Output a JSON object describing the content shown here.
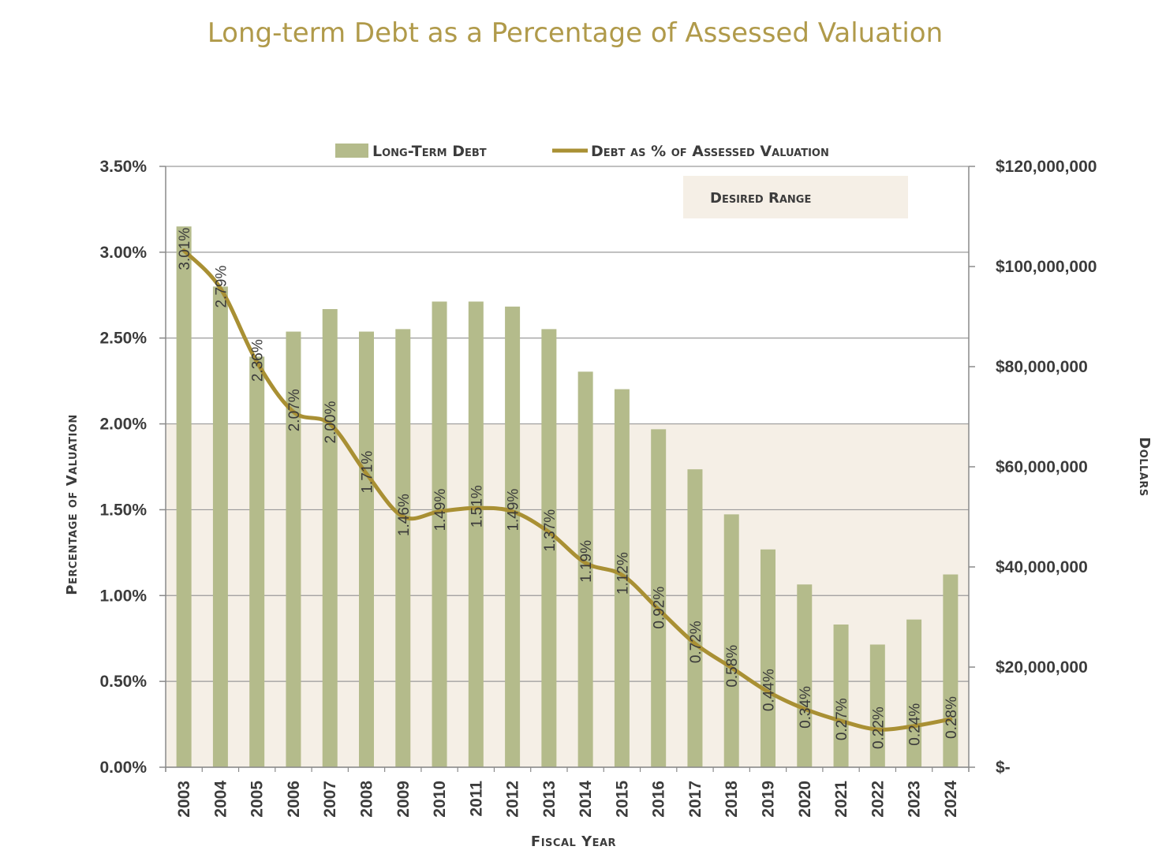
{
  "chart_data": {
    "type": "bar",
    "title": "Long-term Debt as a Percentage of Assessed Valuation",
    "xlabel": "Fiscal Year",
    "ylabel": "Percentage of Valuation",
    "y2label": "Dollars",
    "categories": [
      "2003",
      "2004",
      "2005",
      "2006",
      "2007",
      "2008",
      "2009",
      "2010",
      "2011",
      "2012",
      "2013",
      "2014",
      "2015",
      "2016",
      "2017",
      "2018",
      "2019",
      "2020",
      "2021",
      "2022",
      "2023",
      "2024"
    ],
    "ylim": [
      0,
      3.5
    ],
    "yticks": [
      "0.00%",
      "0.50%",
      "1.00%",
      "1.50%",
      "2.00%",
      "2.50%",
      "3.00%",
      "3.50%"
    ],
    "y2lim": [
      0,
      120000000
    ],
    "y2ticks": [
      "$-",
      "$20,000,000",
      "$40,000,000",
      "$60,000,000",
      "$80,000,000",
      "$100,000,000",
      "$120,000,000"
    ],
    "series": [
      {
        "name": "Long-Term Debt",
        "type": "bar",
        "axis": "right",
        "color": "#b4bb8b",
        "values": [
          108000000,
          96000000,
          82000000,
          87000000,
          91500000,
          87000000,
          87500000,
          93000000,
          93000000,
          92000000,
          87500000,
          79000000,
          75500000,
          67500000,
          59500000,
          50500000,
          43500000,
          36500000,
          28500000,
          24500000,
          29500000,
          38500000
        ]
      },
      {
        "name": "Debt as % of Assessed Valuation",
        "type": "line",
        "axis": "left",
        "color": "#a99034",
        "values": [
          3.01,
          2.79,
          2.36,
          2.07,
          2.0,
          1.71,
          1.46,
          1.49,
          1.51,
          1.49,
          1.37,
          1.19,
          1.12,
          0.92,
          0.72,
          0.58,
          0.44,
          0.34,
          0.27,
          0.22,
          0.24,
          0.28
        ],
        "labels": [
          "3.01%",
          "2.79%",
          "2.36%",
          "2.07%",
          "2.00%",
          "1.71%",
          "1.46%",
          "1.49%",
          "1.51%",
          "1.49%",
          "1.37%",
          "1.19%",
          "1.12%",
          "0.92%",
          "0.72%",
          "0.58%",
          "0.44%",
          "0.34%",
          "0.27%",
          "0.22%",
          "0.24%",
          "0.28%"
        ]
      }
    ],
    "desired_range": {
      "label": "Desired Range",
      "from": 0,
      "to": 2.0,
      "color": "#f5efe6"
    },
    "grid": true,
    "legend": "top-center"
  }
}
